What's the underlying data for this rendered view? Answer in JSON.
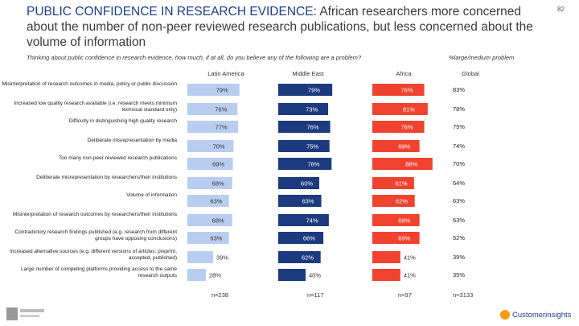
{
  "title": {
    "lead": "PUBLIC CONFIDENCE IN RESEARCH EVIDENCE:",
    "rest": " African researchers more concerned about the number of non-peer reviewed research publications, but less concerned about the volume of information"
  },
  "page_number": "82",
  "question": "Thinking about public confidence in research evidence, how much, if at all, do you believe any of the following are a problem?",
  "pct_note": "%large/medium problem",
  "brand": "Customerinsights",
  "chart_data": {
    "type": "bar",
    "regions": [
      "Latin America",
      "Middle East",
      "Africa",
      "Global"
    ],
    "colors": {
      "latin_america": "#b9cdf0",
      "middle_east": "#1c3a7e",
      "africa": "#f0432f"
    },
    "categories": [
      "Misinterpretation of research outcomes in media, policy or public discussion",
      "Increased low quality research available (i.e. research meets minimum technical standard only)",
      "Difficulty in distinguishing high quality research",
      "Deliberate misrepresentation by media",
      "Too many non-peer reviewed research publications",
      "Deliberate misrepresentation by researchers/their institutions",
      "Volume of information",
      "Misinterpretation of research outcomes by researchers/their institutions",
      "Contradictory research findings published (e.g. research from different groups have opposing conclusions)",
      "Increased alternative sources (e.g. different versions of articles: preprint, accepted, published)",
      "Large number of competing platforms providing access to the same research outputs"
    ],
    "series": [
      {
        "name": "Latin America",
        "values": [
          79,
          76,
          77,
          70,
          69,
          68,
          63,
          68,
          63,
          39,
          28
        ],
        "labels": [
          "79%",
          "76%",
          "77%",
          "70%",
          "69%",
          "68%",
          "63%",
          "68%",
          "63%",
          "39%",
          "28%"
        ]
      },
      {
        "name": "Middle East",
        "values": [
          79,
          73,
          76,
          75,
          78,
          60,
          63,
          74,
          66,
          62,
          40
        ],
        "labels": [
          "79%",
          "73%",
          "76%",
          "75%",
          "78%",
          "60%",
          "63%",
          "74%",
          "66%",
          "62%",
          "40%"
        ]
      },
      {
        "name": "Africa",
        "values": [
          76,
          81,
          76,
          69,
          88,
          61,
          62,
          69,
          69,
          41,
          41
        ],
        "labels": [
          "76%",
          "81%",
          "76%",
          "69%",
          "88%",
          "61%",
          "62%",
          "69%",
          "69%",
          "41%",
          "41%"
        ]
      },
      {
        "name": "Global",
        "values": [
          83,
          78,
          75,
          74,
          70,
          64,
          63,
          63,
          52,
          39,
          35
        ],
        "labels": [
          "83%",
          "78%",
          "75%",
          "74%",
          "70%",
          "64%",
          "63%",
          "63%",
          "52%",
          "39%",
          "35%"
        ]
      }
    ],
    "sample_sizes": [
      "n=238",
      "n=117",
      "n=97",
      "n=3133"
    ]
  }
}
